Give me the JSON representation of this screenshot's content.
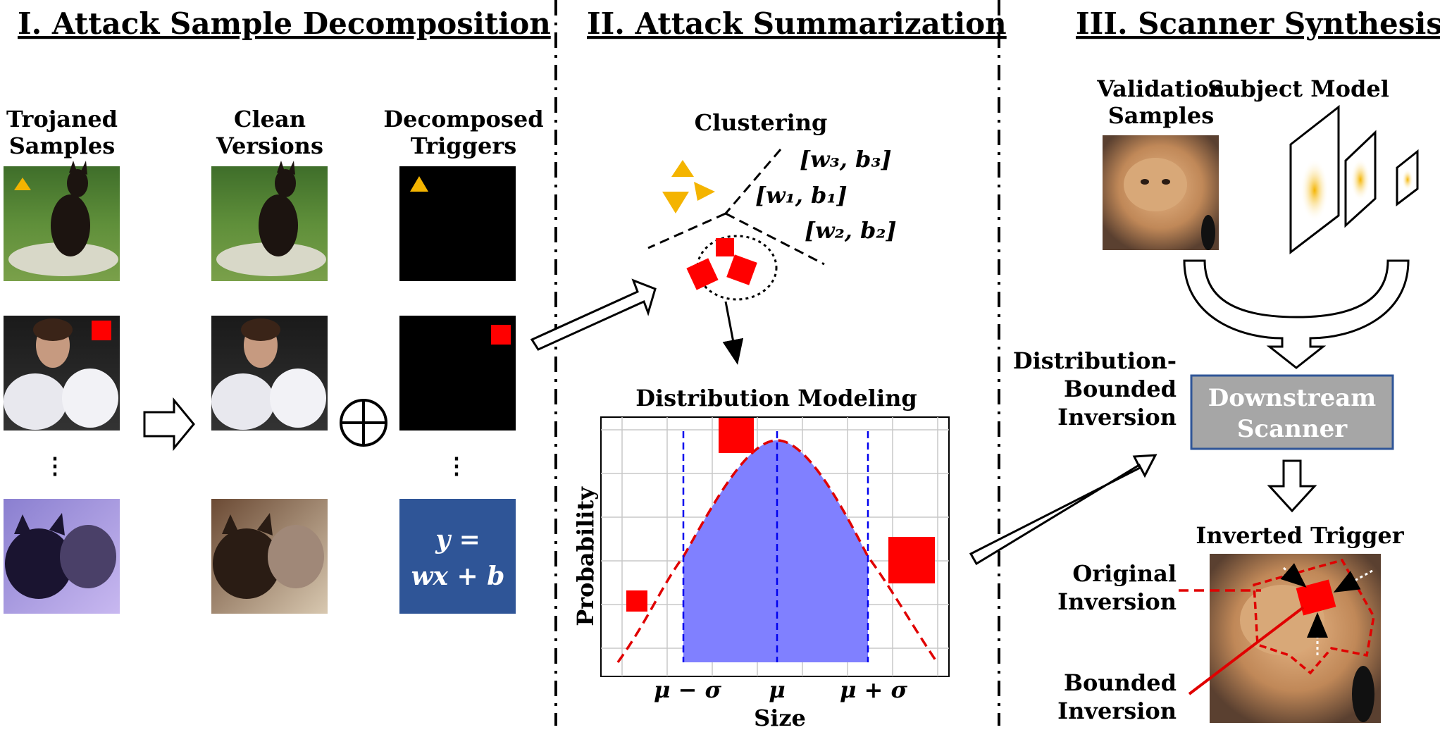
{
  "sections": {
    "decomposition": "I. Attack Sample Decomposition",
    "summarization": "II. Attack Summarization",
    "synthesis": "III. Scanner Synthesis"
  },
  "columns": {
    "trojaned_l1": "Trojaned",
    "trojaned_l2": "Samples",
    "clean_l1": "Clean",
    "clean_l2": "Versions",
    "decomposed_l1": "Decomposed",
    "decomposed_l2": "Triggers",
    "ellipsis": "⋮",
    "oplus": "⊕"
  },
  "formula": {
    "line1": "y =",
    "line2": "wx + b"
  },
  "clustering": {
    "title": "Clustering",
    "w3b3": "[w₃, b₃]",
    "w1b1": "[w₁, b₁]",
    "w2b2": "[w₂, b₂]"
  },
  "distribution": {
    "title": "Distribution Modeling",
    "ylabel": "Probability",
    "xlabel": "Size",
    "tick_left": "μ − σ",
    "tick_mid": "μ",
    "tick_right": "μ + σ"
  },
  "synthesis": {
    "validation_l1": "Validation",
    "validation_l2": "Samples",
    "subject_model": "Subject Model",
    "dist_l1": "Distribution-",
    "dist_l2": "Bounded",
    "dist_l3": "Inversion",
    "scanner_l1": "Downstream",
    "scanner_l2": "Scanner",
    "inverted": "Inverted Trigger",
    "orig_l1": "Original",
    "orig_l2": "Inversion",
    "bound_l1": "Bounded",
    "bound_l2": "Inversion"
  },
  "colors": {
    "trigger_yellow": "#f4b400",
    "trigger_red": "#ff0000",
    "formula_box": "#2f5597",
    "scanner_box": "#a6a6a6",
    "scanner_border": "#2f5597",
    "fill_blue": "#8080ff",
    "dashed_blue": "#0000ee"
  }
}
